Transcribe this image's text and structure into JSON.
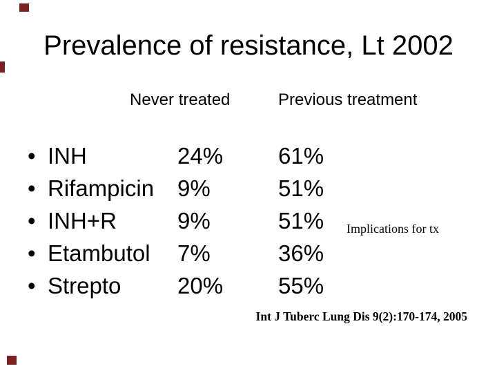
{
  "slide": {
    "title": "Prevalence of resistance, Lt 2002",
    "bullet": "•",
    "columns": {
      "never_treated": "Never treated",
      "previous_treatment": "Previous treatment"
    },
    "rows": [
      {
        "drug": "INH",
        "never": "24%",
        "previous": "61%"
      },
      {
        "drug": "Rifampicin",
        "never": "9%",
        "previous": "51%"
      },
      {
        "drug": "INH+R",
        "never": "9%",
        "previous": "51%"
      },
      {
        "drug": "Etambutol",
        "never": "7%",
        "previous": "36%"
      },
      {
        "drug": "Strepto",
        "never": "20%",
        "previous": "55%"
      }
    ],
    "annotation": "Implications for tx",
    "citation": "Int J Tuberc Lung Dis 9(2):170-174, 2005",
    "colors": {
      "text": "#000000",
      "background": "#ffffff",
      "decor_square": "#7a2222"
    }
  }
}
